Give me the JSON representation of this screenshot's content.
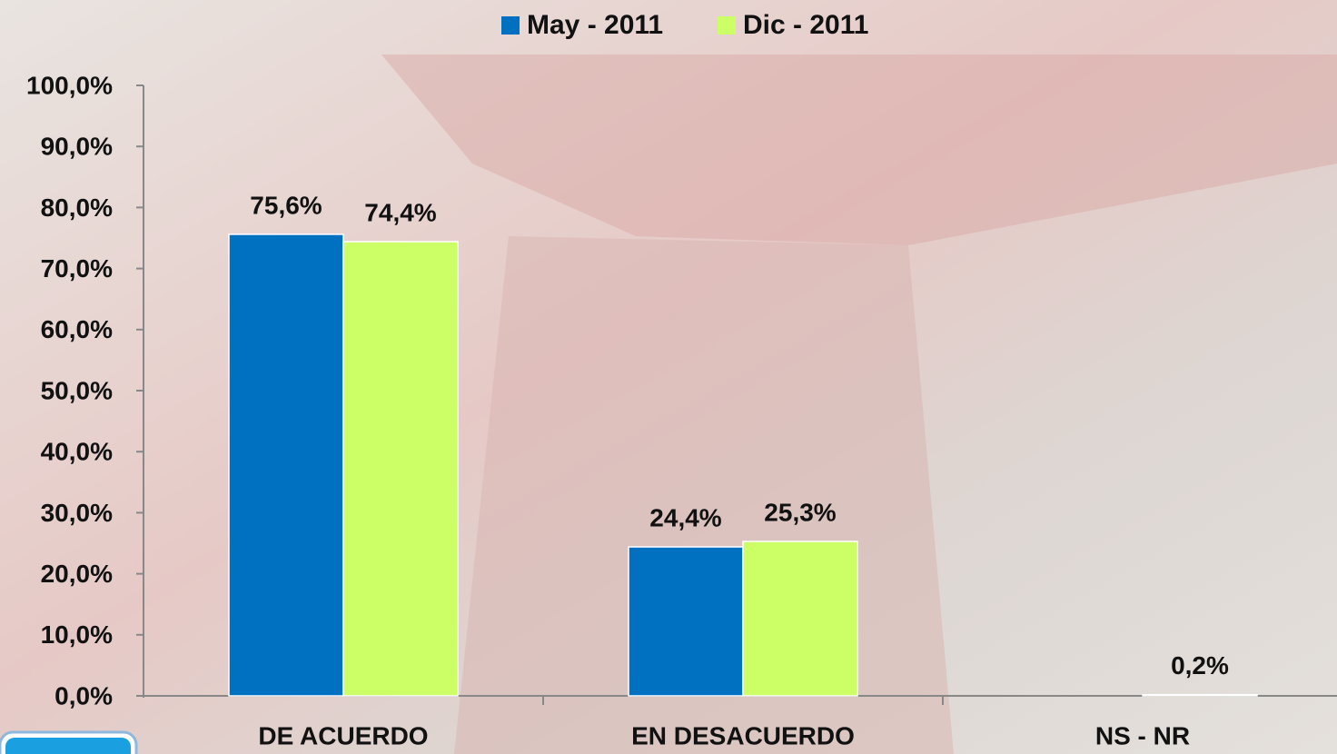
{
  "chart_data": {
    "type": "bar",
    "categories": [
      "DE ACUERDO",
      "EN DESACUERDO",
      "NS - NR"
    ],
    "series": [
      {
        "name": "May - 2011",
        "color": "#0070c0",
        "values": [
          75.6,
          24.4,
          0
        ],
        "value_labels": [
          "75,6%",
          "24,4%",
          null
        ]
      },
      {
        "name": "Dic - 2011",
        "color": "#ccff66",
        "values": [
          74.4,
          25.3,
          0.2
        ],
        "value_labels": [
          "74,4%",
          "25,3%",
          "0,2%"
        ]
      }
    ],
    "ylim": [
      0,
      100
    ],
    "yticks": [
      {
        "value": 0,
        "label": "0,0%"
      },
      {
        "value": 10,
        "label": "10,0%"
      },
      {
        "value": 20,
        "label": "20,0%"
      },
      {
        "value": 30,
        "label": "30,0%"
      },
      {
        "value": 40,
        "label": "40,0%"
      },
      {
        "value": 50,
        "label": "50,0%"
      },
      {
        "value": 60,
        "label": "60,0%"
      },
      {
        "value": 70,
        "label": "70,0%"
      },
      {
        "value": 80,
        "label": "80,0%"
      },
      {
        "value": 90,
        "label": "90,0%"
      },
      {
        "value": 100,
        "label": "100,0%"
      }
    ],
    "legend": "top"
  }
}
